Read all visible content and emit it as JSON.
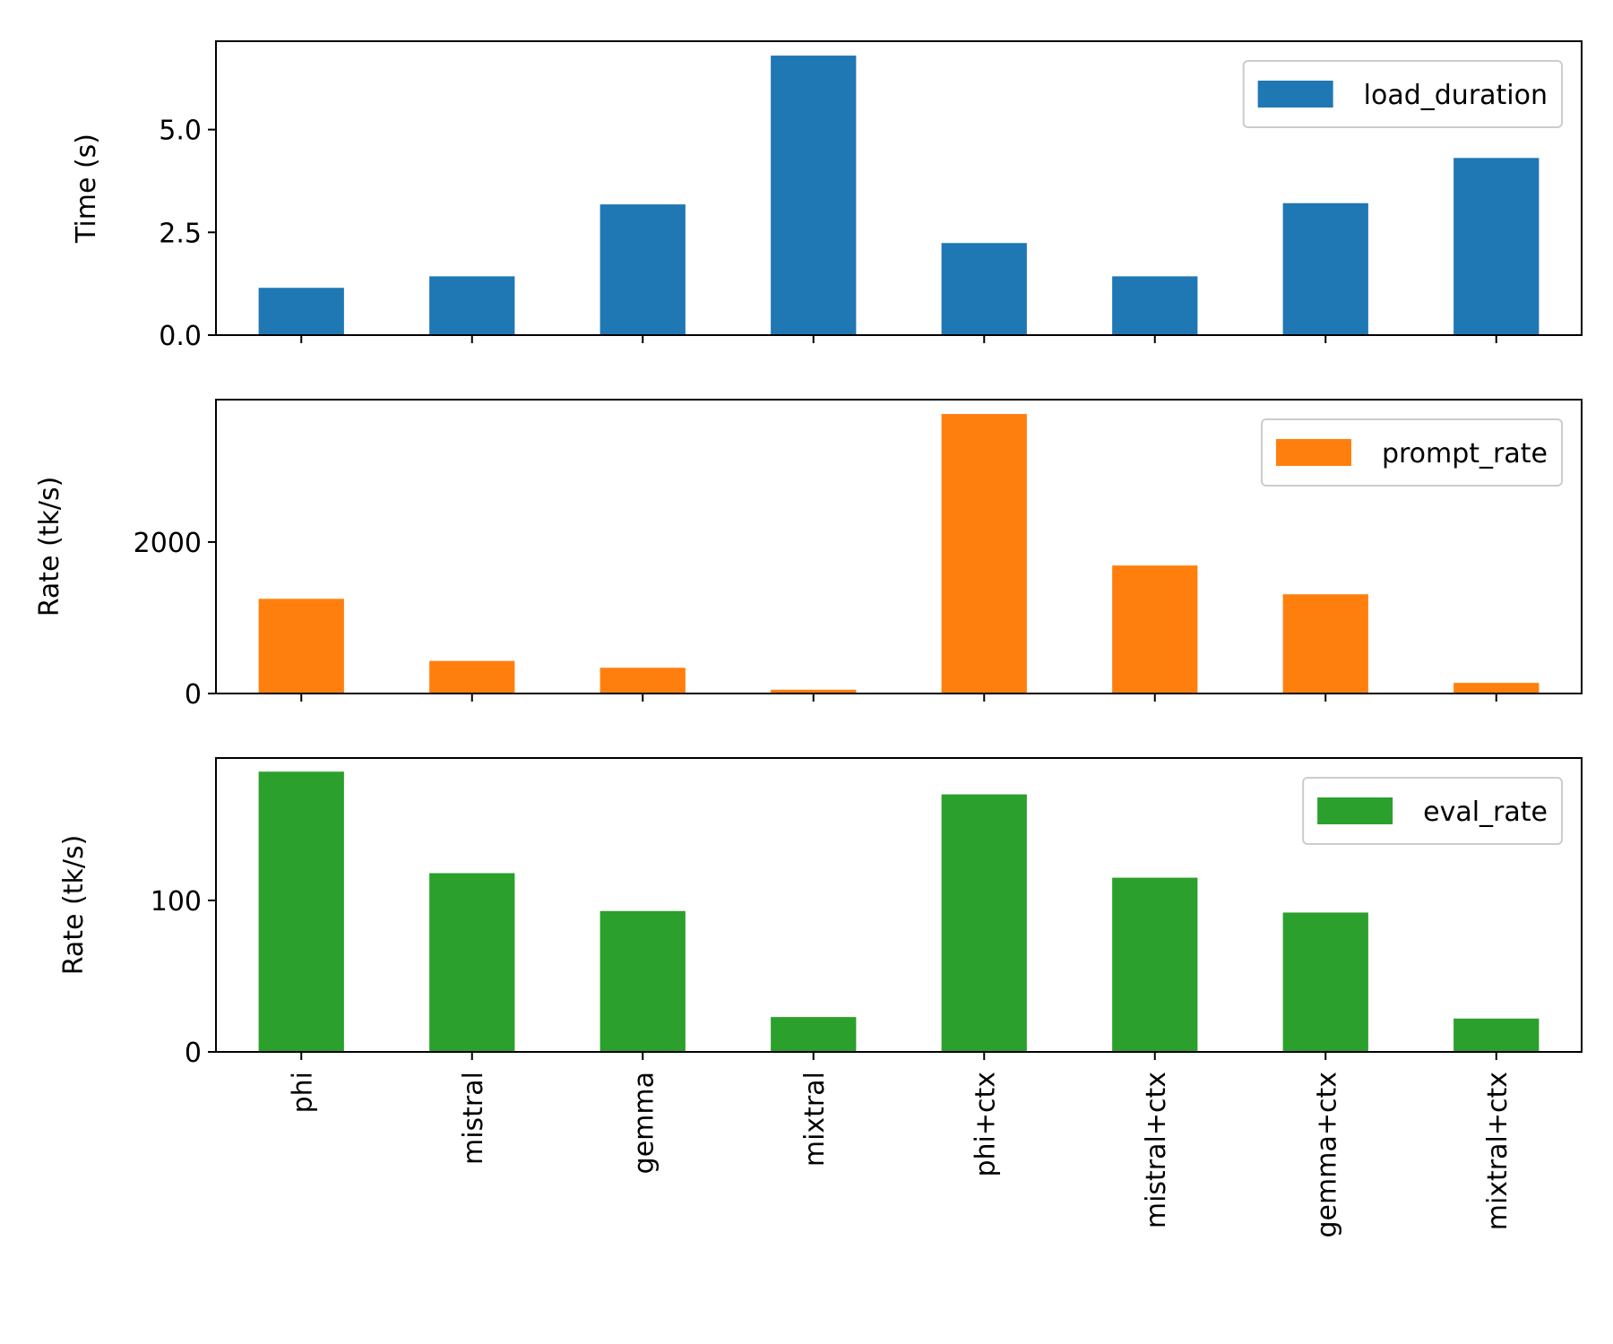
{
  "chart_data": [
    {
      "type": "bar",
      "categories": [
        "phi",
        "mistral",
        "gemma",
        "mixtral",
        "phi+ctx",
        "mistral+ctx",
        "gemma+ctx",
        "mixtral+ctx"
      ],
      "series": [
        {
          "name": "load_duration",
          "values": [
            1.15,
            1.43,
            3.18,
            6.8,
            2.24,
            1.43,
            3.21,
            4.31
          ],
          "color": "#1f77b4"
        }
      ],
      "xlabel": "",
      "ylabel": "Time (s)",
      "ylim": [
        0,
        7.15
      ],
      "yticks": [
        0.0,
        2.5,
        5.0
      ],
      "ytick_labels": [
        "0.0",
        "2.5",
        "5.0"
      ],
      "legend_position": "top-right",
      "grid": false
    },
    {
      "type": "bar",
      "categories": [
        "phi",
        "mistral",
        "gemma",
        "mixtral",
        "phi+ctx",
        "mistral+ctx",
        "gemma+ctx",
        "mixtral+ctx"
      ],
      "series": [
        {
          "name": "prompt_rate",
          "values": [
            1250,
            430,
            340,
            50,
            3690,
            1690,
            1310,
            140
          ],
          "color": "#ff7f0e"
        }
      ],
      "xlabel": "",
      "ylabel": "Rate (tk/s)",
      "ylim": [
        0,
        3880
      ],
      "yticks": [
        0,
        2000
      ],
      "ytick_labels": [
        "0",
        "2000"
      ],
      "legend_position": "top-right",
      "grid": false
    },
    {
      "type": "bar",
      "categories": [
        "phi",
        "mistral",
        "gemma",
        "mixtral",
        "phi+ctx",
        "mistral+ctx",
        "gemma+ctx",
        "mixtral+ctx"
      ],
      "series": [
        {
          "name": "eval_rate",
          "values": [
            185,
            118,
            93,
            23,
            170,
            115,
            92,
            22
          ],
          "color": "#2ca02c"
        }
      ],
      "xlabel": "",
      "ylabel": "Rate (tk/s)",
      "ylim": [
        0,
        194
      ],
      "yticks": [
        0,
        100
      ],
      "ytick_labels": [
        "0",
        "100"
      ],
      "legend_position": "top-right",
      "grid": false
    }
  ]
}
